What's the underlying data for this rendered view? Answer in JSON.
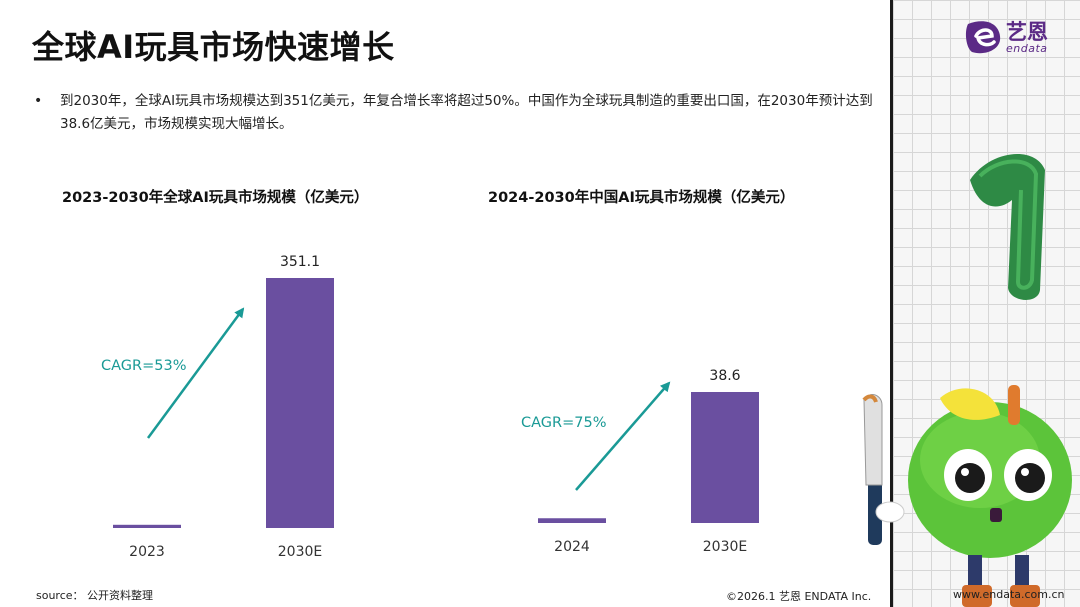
{
  "title": "全球AI玩具市场快速增长",
  "bullet": {
    "marker": "•",
    "text": "到2030年，全球AI玩具市场规模达到351亿美元，年复合增长率将超过50%。中国作为全球玩具制造的重要出口国，在2030年预计达到38.6亿美元，市场规模实现大幅增长。"
  },
  "chart_data": [
    {
      "type": "bar",
      "title": "2023-2030年全球AI玩具市场规模（亿美元）",
      "categories": [
        "2023",
        "2030E"
      ],
      "values": [
        4.5,
        351.1
      ],
      "data_labels": [
        "",
        "351.1"
      ],
      "annotation": "CAGR=53%",
      "bar_color": "#6a4fa0",
      "arrow_color": "#1a9a96"
    },
    {
      "type": "bar",
      "title": "2024-2030年中国AI玩具市场规模（亿美元）",
      "categories": [
        "2024",
        "2030E"
      ],
      "values": [
        1.4,
        38.6
      ],
      "data_labels": [
        "",
        "38.6"
      ],
      "annotation": "CAGR=75%",
      "bar_color": "#6a4fa0",
      "arrow_color": "#1a9a96"
    }
  ],
  "footer": {
    "source": "source： 公开资料整理",
    "copyright": "©2026.1  艺恩 ENDATA Inc.",
    "website": "www.endata.com.cn"
  },
  "logo": {
    "cn": "艺恩",
    "en": "endata",
    "color": "#5b2a86"
  },
  "mascot": {
    "number": "1",
    "icon": "apple-mascot-icon"
  }
}
